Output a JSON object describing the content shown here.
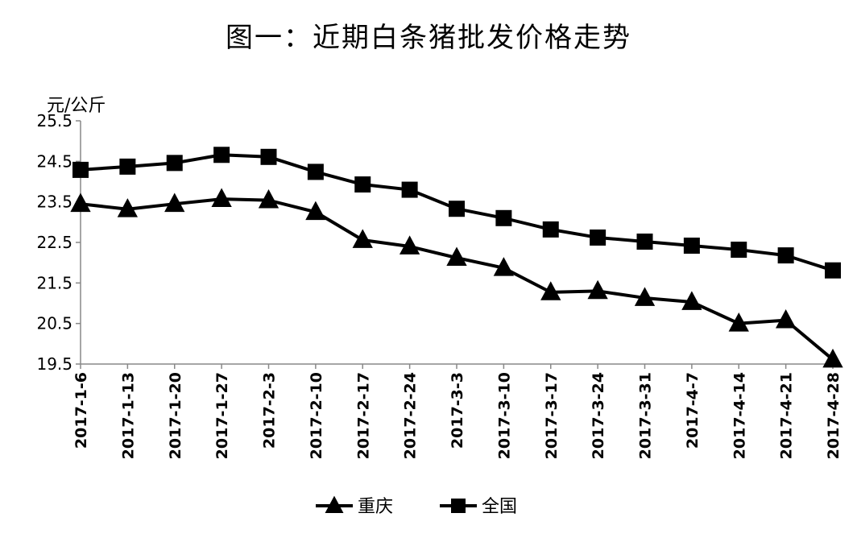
{
  "chart_data": {
    "type": "line",
    "title": "图一：近期白条猪批发价格走势",
    "ylabel": "元/公斤",
    "xlabel": "",
    "ylim": [
      19.5,
      25.5
    ],
    "yticks": [
      "25.5",
      "24.5",
      "23.5",
      "22.5",
      "21.5",
      "20.5",
      "19.5"
    ],
    "grid": false,
    "legend_position": "bottom",
    "categories": [
      "2017-1-6",
      "2017-1-13",
      "2017-1-20",
      "2017-1-27",
      "2017-2-3",
      "2017-2-10",
      "2017-2-17",
      "2017-2-24",
      "2017-3-3",
      "2017-3-10",
      "2017-3-17",
      "2017-3-24",
      "2017-3-31",
      "2017-4-7",
      "2017-4-14",
      "2017-4-21",
      "2017-4-28"
    ],
    "series": [
      {
        "name": "重庆",
        "marker": "triangle",
        "color": "#000000",
        "values": [
          23.45,
          23.32,
          23.45,
          23.57,
          23.54,
          23.25,
          22.56,
          22.4,
          22.12,
          21.87,
          21.27,
          21.3,
          21.13,
          21.03,
          20.5,
          20.58,
          19.61
        ]
      },
      {
        "name": "全国",
        "marker": "square",
        "color": "#000000",
        "values": [
          24.29,
          24.37,
          24.46,
          24.66,
          24.61,
          24.24,
          23.93,
          23.8,
          23.33,
          23.1,
          22.82,
          22.62,
          22.52,
          22.42,
          22.32,
          22.18,
          21.81
        ]
      }
    ]
  }
}
